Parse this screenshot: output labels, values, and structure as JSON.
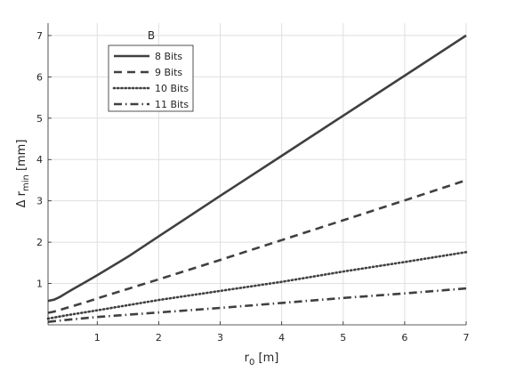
{
  "chart_data": {
    "type": "line",
    "title": "",
    "xlabel": {
      "main": "r",
      "sub": "0",
      "unit": " [m]"
    },
    "ylabel": {
      "main": "Δ r",
      "sub": "min",
      "unit": " [mm]"
    },
    "xlim": [
      0.2,
      7
    ],
    "ylim": [
      0,
      7.3
    ],
    "xticks": [
      1,
      2,
      3,
      4,
      5,
      6,
      7
    ],
    "yticks": [
      1,
      2,
      3,
      4,
      5,
      6,
      7
    ],
    "grid": true,
    "legend": {
      "title": "B",
      "position": "top-left"
    },
    "line_color": "#404040",
    "series": [
      {
        "name": "8 Bits",
        "dash": "solid",
        "points": [
          [
            0.2,
            0.58
          ],
          [
            0.3,
            0.61
          ],
          [
            0.4,
            0.68
          ],
          [
            0.5,
            0.77
          ],
          [
            0.6,
            0.86
          ],
          [
            0.8,
            1.03
          ],
          [
            1.0,
            1.2
          ],
          [
            1.5,
            1.65
          ],
          [
            2,
            2.14
          ],
          [
            3,
            3.12
          ],
          [
            4,
            4.09
          ],
          [
            5,
            5.06
          ],
          [
            6,
            6.03
          ],
          [
            7,
            7.0
          ]
        ]
      },
      {
        "name": "9 Bits",
        "dash": "dashed",
        "points": [
          [
            0.2,
            0.29
          ],
          [
            0.3,
            0.32
          ],
          [
            0.5,
            0.41
          ],
          [
            0.8,
            0.54
          ],
          [
            1,
            0.64
          ],
          [
            2,
            1.1
          ],
          [
            3,
            1.57
          ],
          [
            4,
            2.05
          ],
          [
            5,
            2.53
          ],
          [
            6,
            3.01
          ],
          [
            7,
            3.5
          ]
        ]
      },
      {
        "name": "10 Bits",
        "dash": "dotted",
        "points": [
          [
            0.2,
            0.15
          ],
          [
            0.5,
            0.23
          ],
          [
            1,
            0.35
          ],
          [
            2,
            0.6
          ],
          [
            3,
            0.82
          ],
          [
            4,
            1.04
          ],
          [
            5,
            1.29
          ],
          [
            6,
            1.52
          ],
          [
            7,
            1.76
          ]
        ]
      },
      {
        "name": "11 Bits",
        "dash": "dashdot",
        "points": [
          [
            0.2,
            0.07
          ],
          [
            0.5,
            0.12
          ],
          [
            1,
            0.19
          ],
          [
            2,
            0.3
          ],
          [
            3,
            0.41
          ],
          [
            4,
            0.53
          ],
          [
            5,
            0.65
          ],
          [
            6,
            0.76
          ],
          [
            7,
            0.88
          ]
        ]
      }
    ]
  }
}
